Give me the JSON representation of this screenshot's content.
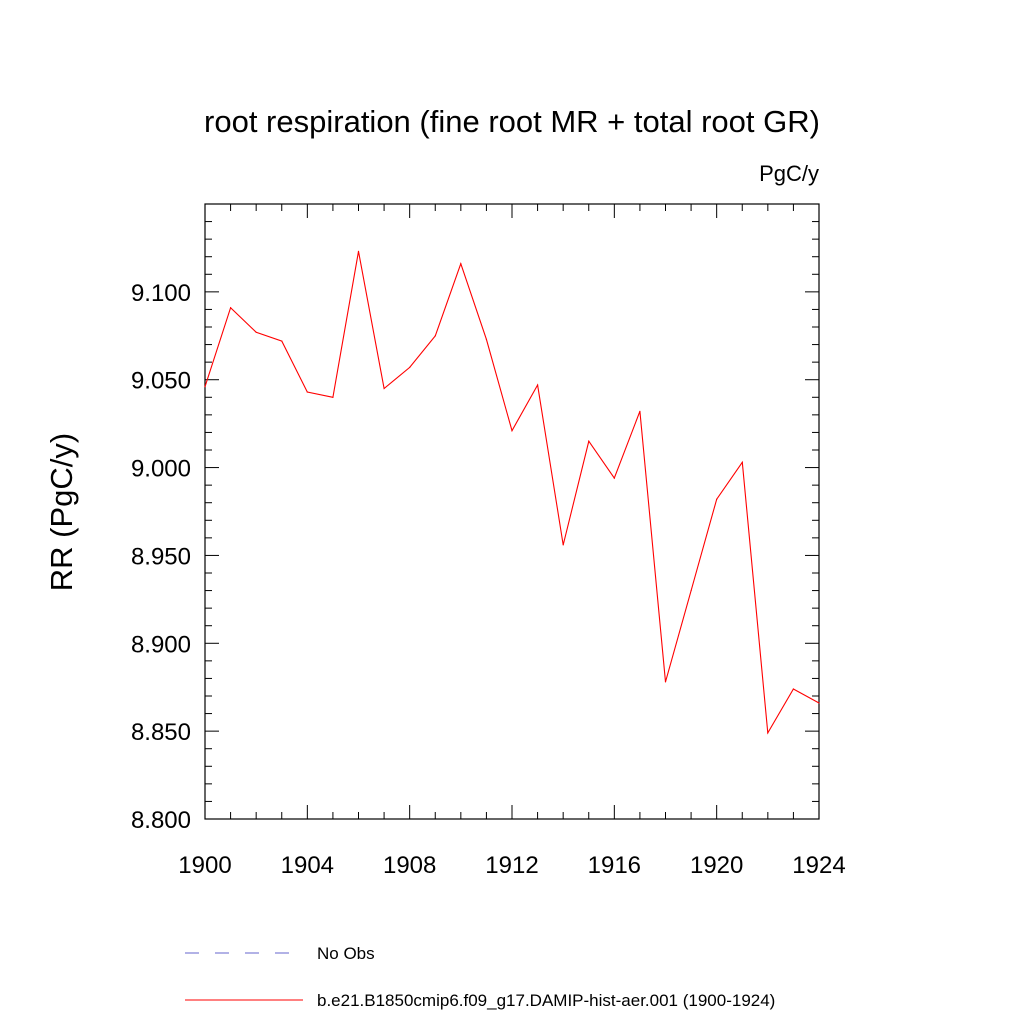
{
  "chart_data": {
    "type": "line",
    "title": "root respiration (fine root MR + total root GR)",
    "units": "PgC/y",
    "xlabel": "",
    "ylabel": "RR  (PgC/y)",
    "xlim": [
      1900,
      1924
    ],
    "ylim": [
      8.8,
      9.15
    ],
    "x_ticks": [
      1900,
      1904,
      1908,
      1912,
      1916,
      1920,
      1924
    ],
    "y_ticks": [
      8.8,
      8.85,
      8.9,
      8.95,
      9.0,
      9.05,
      9.1
    ],
    "x_tick_labels": [
      "1900",
      "1904",
      "1908",
      "1912",
      "1916",
      "1920",
      "1924"
    ],
    "y_tick_labels": [
      "8.800",
      "8.850",
      "8.900",
      "8.950",
      "9.000",
      "9.050",
      "9.100"
    ],
    "grid": false,
    "legend_position": "bottom",
    "series": [
      {
        "name": "b.e21.B1850cmip6.f09_g17.DAMIP-hist-aer.001 (1900-1924)",
        "color": "#ff0000",
        "style": "solid",
        "x": [
          1900,
          1901,
          1902,
          1903,
          1904,
          1905,
          1906,
          1907,
          1908,
          1909,
          1910,
          1911,
          1912,
          1913,
          1914,
          1915,
          1916,
          1917,
          1918,
          1919,
          1920,
          1921,
          1922,
          1923,
          1924
        ],
        "values": [
          9.046,
          9.091,
          9.077,
          9.072,
          9.043,
          9.04,
          9.123,
          9.045,
          9.057,
          9.075,
          9.116,
          9.073,
          9.021,
          9.047,
          8.956,
          9.015,
          8.994,
          9.032,
          8.878,
          8.93,
          8.982,
          9.003,
          8.849,
          8.874,
          8.866
        ]
      }
    ],
    "legend": [
      {
        "label": "No Obs",
        "color": "#6666cc",
        "style": "dashed"
      },
      {
        "label": "b.e21.B1850cmip6.f09_g17.DAMIP-hist-aer.001 (1900-1924)",
        "color": "#ff0000",
        "style": "solid"
      }
    ]
  }
}
